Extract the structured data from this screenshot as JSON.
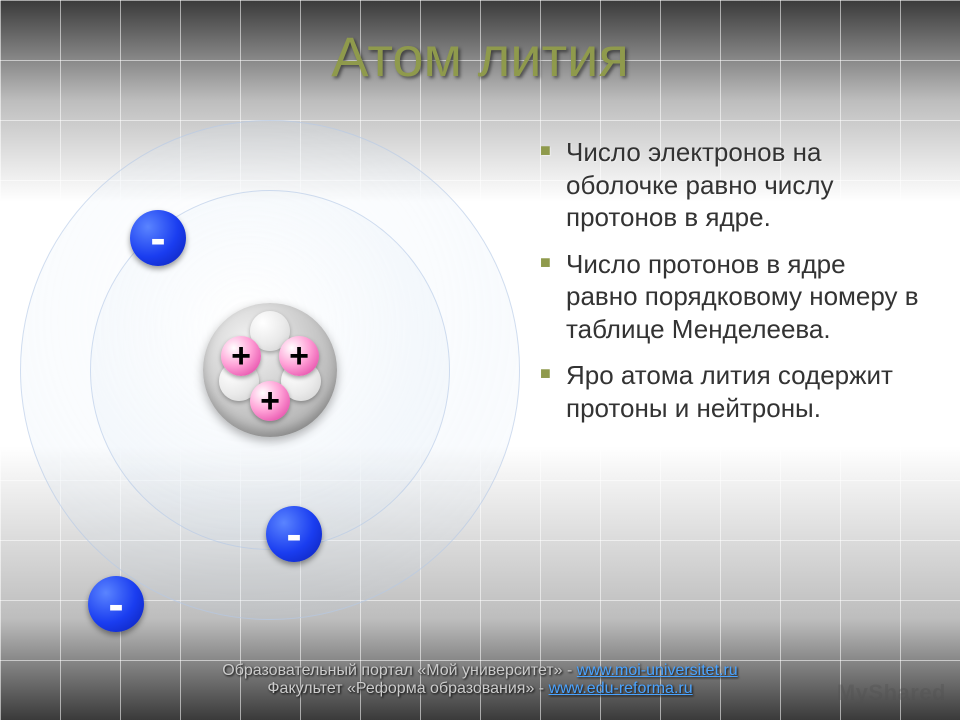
{
  "title": "Атом лития",
  "bullets": [
    "Число электронов на оболочке равно числу протонов в ядре.",
    "Число протонов в ядре равно порядковому номеру в таблице Менделеева.",
    "Яро атома лития содержит протоны и нейтроны."
  ],
  "atom": {
    "protons": {
      "count": 3,
      "symbol": "+",
      "color": "#e959b1"
    },
    "neutrons": {
      "count": 3,
      "color": "#eaeaea"
    },
    "electrons": {
      "count": 3,
      "symbol": "-",
      "color": "#1a3df0"
    },
    "shell_border_color": "#b4c8e6"
  },
  "footer": {
    "line1_prefix": "Образовательный портал «Мой университет» - ",
    "link1_text": "www.moi-universitet.ru",
    "line2_prefix": "Факультет «Реформа образования» - ",
    "link2_text": "www.edu-reforma.ru"
  },
  "watermark": "MyShared",
  "colors": {
    "title": "#8f9a4c",
    "bullet_marker": "#8f9a4c",
    "link": "#4aa3ff"
  }
}
